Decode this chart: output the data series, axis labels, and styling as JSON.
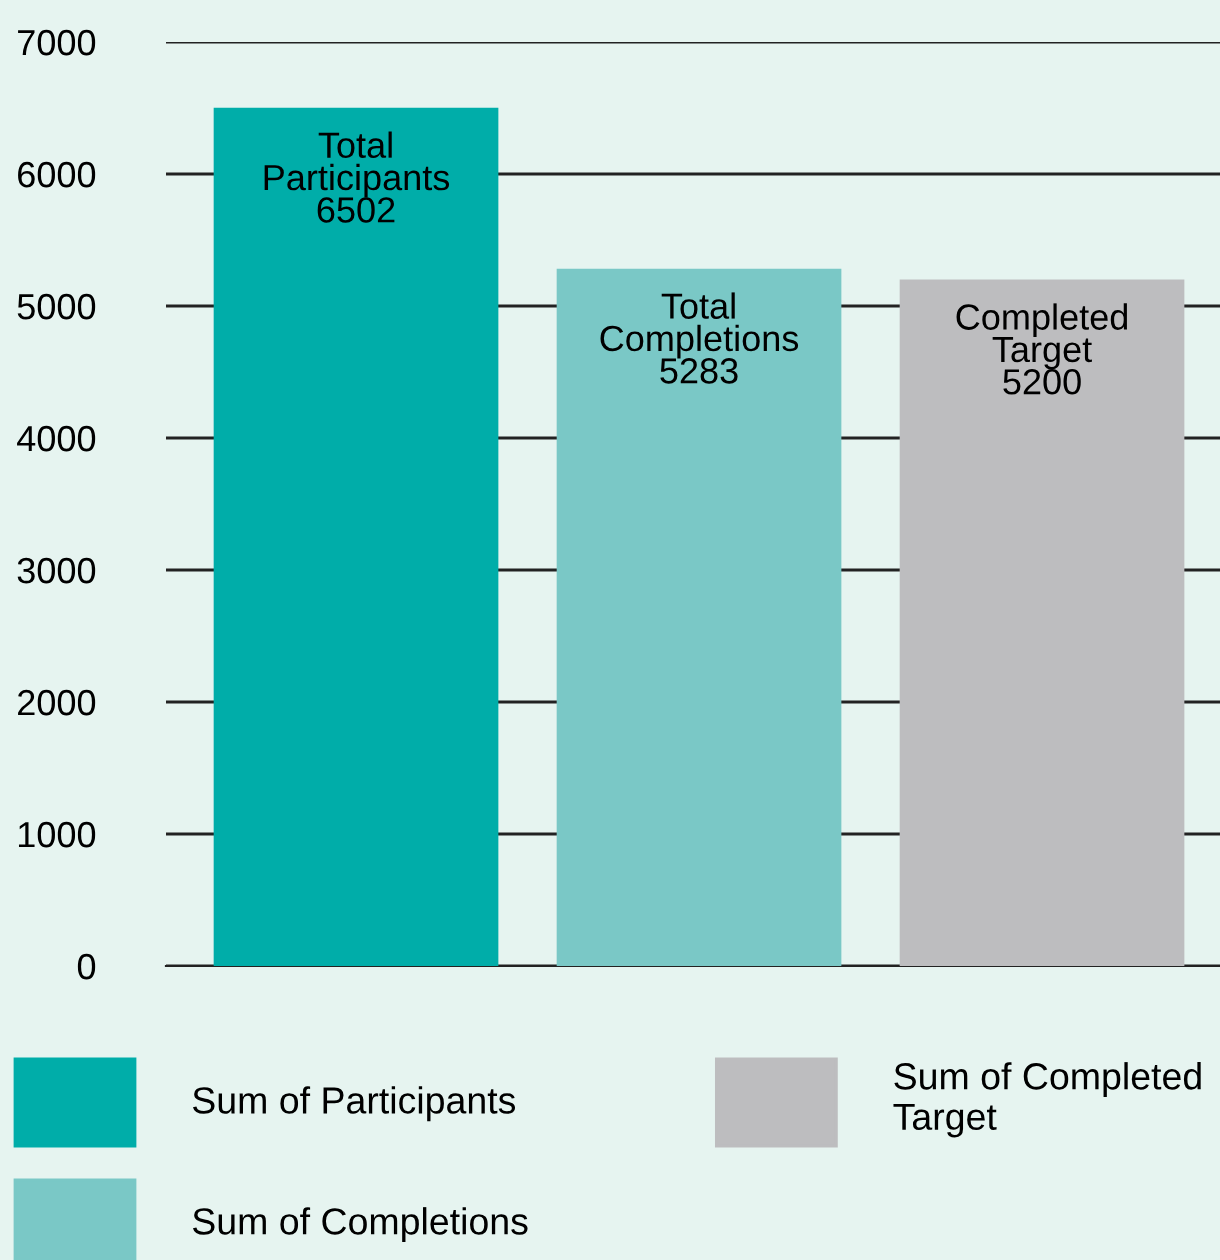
{
  "chart_data": {
    "type": "bar",
    "categories": [
      null
    ],
    "series": [
      {
        "name": "Sum of Participants",
        "color": "#00ada9",
        "values": [
          6502
        ],
        "value_labels": [
          "Total\nParticipants\n6502"
        ]
      },
      {
        "name": "Sum of Completions",
        "color": "#7ac8c6",
        "values": [
          5283
        ],
        "value_labels": [
          "Total\nCompletions\n5283"
        ]
      },
      {
        "name": "Sum of Completed\nTarget",
        "color": "#bdbdbf",
        "values": [
          5200
        ],
        "value_labels": [
          "Completed\nTarget\n5200"
        ]
      }
    ],
    "ylim": [
      0,
      7000
    ],
    "yticks": [
      0,
      1000,
      2000,
      3000,
      4000,
      5000,
      6000,
      7000
    ],
    "grid": "y",
    "legend": "bottom"
  }
}
